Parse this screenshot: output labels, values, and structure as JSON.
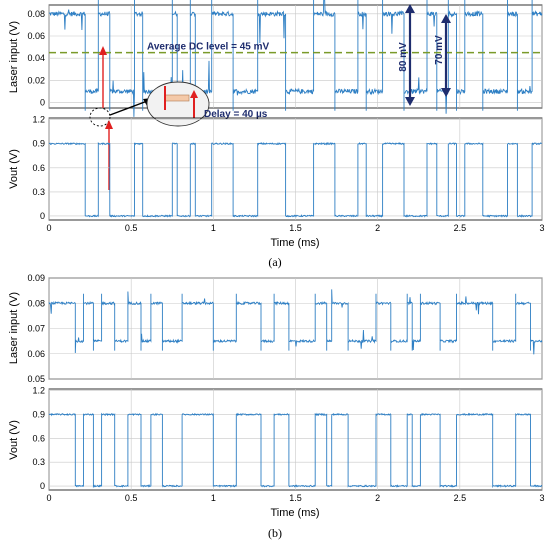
{
  "colors": {
    "trace": "#2e7fc4",
    "grid": "#c8c8c8",
    "avg_line": "#7a9a2a",
    "arrow_dark": "#1f2d6e",
    "arrow_red": "#e02020"
  },
  "chart_data": [
    {
      "id": "a_laser",
      "type": "line",
      "xlabel": "",
      "ylabel": "Laser input (V)",
      "xlim": [
        0,
        3
      ],
      "ylim": [
        -0.005,
        0.088
      ],
      "xticks": [
        0,
        0.5,
        1,
        1.5,
        2,
        2.5,
        3
      ],
      "yticks": [
        "0",
        "0.02",
        "0.04",
        "0.06",
        "0.08"
      ],
      "ytick_values": [
        0,
        0.02,
        0.04,
        0.06,
        0.08
      ],
      "high": 0.08,
      "low": 0.01,
      "grid": true,
      "annotations": {
        "avg": "Average DC level = 45 mV",
        "avg_value": 0.045,
        "span80": "80 mV",
        "span70": "70 mV",
        "delay": "Delay = 40 µs"
      },
      "transitions": [
        0.22,
        0.3,
        0.37,
        0.52,
        0.57,
        0.75,
        0.78,
        0.86,
        0.89,
        0.99,
        1.12,
        1.27,
        1.44,
        1.61,
        1.74,
        1.88,
        1.93,
        2.03,
        2.16,
        2.3,
        2.36,
        2.43,
        2.48,
        2.53,
        2.64,
        2.79,
        2.85,
        2.94
      ]
    },
    {
      "id": "a_vout",
      "type": "line",
      "xlabel": "Time (ms)",
      "ylabel": "Vout (V)",
      "xlim": [
        0,
        3
      ],
      "ylim": [
        -0.05,
        1.22
      ],
      "xticks": [
        "0",
        "0.5",
        "1",
        "1.5",
        "2",
        "2.5",
        "3"
      ],
      "xtick_values": [
        0,
        0.5,
        1,
        1.5,
        2,
        2.5,
        3
      ],
      "yticks": [
        "0",
        "0.3",
        "0.6",
        "0.9",
        "1.2"
      ],
      "ytick_values": [
        0,
        0.3,
        0.6,
        0.9,
        1.2
      ],
      "high": 0.9,
      "low": 0.0,
      "grid": true,
      "transitions": [
        0.22,
        0.3,
        0.37,
        0.52,
        0.57,
        0.75,
        0.78,
        0.86,
        0.89,
        0.99,
        1.12,
        1.27,
        1.44,
        1.61,
        1.74,
        1.88,
        1.93,
        2.03,
        2.16,
        2.3,
        2.36,
        2.43,
        2.48,
        2.53,
        2.64,
        2.79,
        2.85,
        2.94
      ]
    },
    {
      "id": "b_laser",
      "type": "line",
      "xlabel": "",
      "ylabel": "Laser input (V)",
      "xlim": [
        0,
        3
      ],
      "ylim": [
        0.05,
        0.09
      ],
      "yticks": [
        "0.05",
        "0.06",
        "0.07",
        "0.08",
        "0.09"
      ],
      "ytick_values": [
        0.05,
        0.06,
        0.07,
        0.08,
        0.09
      ],
      "high": 0.08,
      "low": 0.065,
      "grid": true,
      "transitions": [
        0.16,
        0.21,
        0.27,
        0.32,
        0.4,
        0.48,
        0.56,
        0.62,
        0.69,
        0.81,
        1.0,
        1.14,
        1.29,
        1.37,
        1.46,
        1.62,
        1.69,
        1.72,
        1.82,
        1.99,
        2.08,
        2.18,
        2.21,
        2.26,
        2.38,
        2.48,
        2.7,
        2.84,
        2.93
      ]
    },
    {
      "id": "b_vout",
      "type": "line",
      "xlabel": "Time (ms)",
      "ylabel": "Vout (V)",
      "xlim": [
        0,
        3
      ],
      "ylim": [
        -0.05,
        1.22
      ],
      "xticks": [
        "0",
        "0.5",
        "1",
        "1.5",
        "2",
        "2.5",
        "3"
      ],
      "xtick_values": [
        0,
        0.5,
        1,
        1.5,
        2,
        2.5,
        3
      ],
      "yticks": [
        "0",
        "0.3",
        "0.6",
        "0.9",
        "1.2"
      ],
      "ytick_values": [
        0,
        0.3,
        0.6,
        0.9,
        1.2
      ],
      "high": 0.9,
      "low": 0.0,
      "grid": true,
      "transitions": [
        0.16,
        0.21,
        0.27,
        0.32,
        0.4,
        0.48,
        0.56,
        0.62,
        0.69,
        0.81,
        1.0,
        1.14,
        1.29,
        1.37,
        1.46,
        1.62,
        1.69,
        1.72,
        1.82,
        1.99,
        2.08,
        2.18,
        2.21,
        2.26,
        2.38,
        2.48,
        2.7,
        2.84,
        2.93
      ]
    }
  ],
  "captions": {
    "a": "(a)",
    "b": "(b)"
  }
}
